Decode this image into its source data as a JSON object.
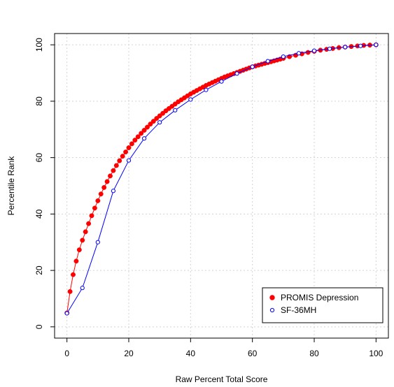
{
  "chart_data": {
    "type": "scatter",
    "title": "",
    "xlabel": "Raw Percent Total Score",
    "ylabel": "Percentile Rank",
    "xlim": [
      -4,
      104
    ],
    "ylim": [
      -4,
      104
    ],
    "x_ticks": [
      0,
      20,
      40,
      60,
      80,
      100
    ],
    "y_ticks": [
      0,
      20,
      40,
      60,
      80,
      100
    ],
    "grid": true,
    "legend_position": "bottom-right",
    "series": [
      {
        "name": "PROMIS Depression",
        "color": "#ff0000",
        "marker": "filled-circle",
        "line": true,
        "x": [
          0,
          1,
          2,
          3,
          4,
          5,
          6,
          7,
          8,
          9,
          10,
          11,
          12,
          13,
          14,
          15,
          16,
          17,
          18,
          19,
          20,
          21,
          22,
          23,
          24,
          25,
          26,
          27,
          28,
          29,
          30,
          31,
          32,
          33,
          34,
          35,
          36,
          37,
          38,
          39,
          40,
          41,
          42,
          43,
          44,
          45,
          46,
          47,
          48,
          49,
          50,
          51,
          52,
          53,
          54,
          55,
          56,
          57,
          58,
          59,
          60,
          61,
          62,
          63,
          64,
          65,
          66,
          67,
          68,
          69,
          70,
          72,
          74,
          76,
          78,
          80,
          82,
          84,
          86,
          88,
          90,
          92,
          94,
          96,
          98,
          100
        ],
        "y": [
          4.9,
          12.5,
          18.5,
          23.3,
          27.3,
          30.7,
          33.7,
          36.6,
          39.4,
          42.1,
          44.7,
          47.1,
          49.4,
          51.5,
          53.5,
          55.4,
          57.2,
          58.9,
          60.5,
          62.0,
          63.5,
          64.9,
          66.2,
          67.4,
          68.6,
          69.7,
          70.8,
          71.9,
          72.9,
          73.9,
          74.8,
          75.7,
          76.6,
          77.4,
          78.2,
          79.0,
          79.8,
          80.5,
          81.2,
          81.9,
          82.6,
          83.2,
          83.8,
          84.4,
          85.0,
          85.6,
          86.1,
          86.6,
          87.1,
          87.6,
          88.1,
          88.6,
          89.0,
          89.4,
          89.8,
          90.2,
          90.6,
          91.0,
          91.4,
          91.8,
          92.2,
          92.5,
          92.8,
          93.1,
          93.4,
          93.7,
          94.0,
          94.3,
          94.6,
          94.9,
          95.2,
          95.8,
          96.3,
          96.8,
          97.3,
          97.7,
          98.1,
          98.4,
          98.7,
          99.0,
          99.2,
          99.4,
          99.6,
          99.8,
          99.9,
          100.0
        ]
      },
      {
        "name": "SF-36MH",
        "color": "#0000ff",
        "marker": "open-circle",
        "line": true,
        "x": [
          0,
          5,
          10,
          15,
          20,
          25,
          30,
          35,
          40,
          45,
          50,
          55,
          60,
          65,
          70,
          75,
          80,
          85,
          90,
          95,
          100
        ],
        "y": [
          4.8,
          13.8,
          30.0,
          48.2,
          59.0,
          66.8,
          72.5,
          76.8,
          80.6,
          84.0,
          87.0,
          89.8,
          92.2,
          94.2,
          95.8,
          97.0,
          97.9,
          98.6,
          99.2,
          99.6,
          100.0
        ]
      }
    ]
  }
}
